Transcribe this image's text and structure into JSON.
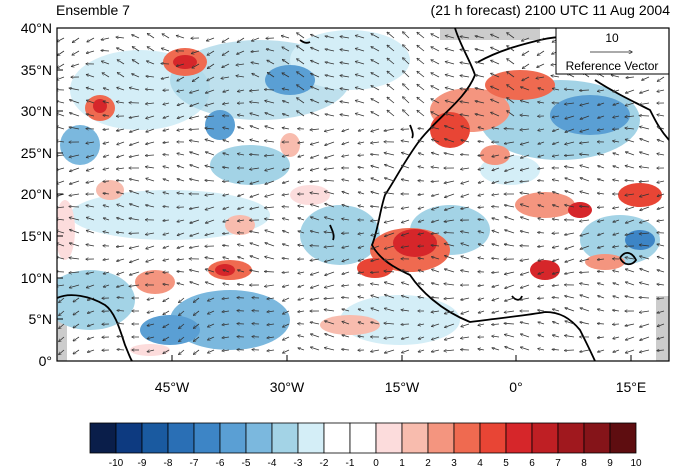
{
  "header": {
    "left_title": "Ensemble 7",
    "right_title": "(21 h forecast) 2100 UTC 11 Aug 2004"
  },
  "map": {
    "y_ticks": [
      "40°N",
      "35°N",
      "30°N",
      "25°N",
      "20°N",
      "15°N",
      "10°N",
      "5°N",
      "0°"
    ],
    "x_ticks": [
      "45°W",
      "30°W",
      "15°W",
      "0°",
      "15°E"
    ],
    "lat_range": [
      0,
      40
    ],
    "lon_range": [
      -60,
      20
    ]
  },
  "reference_vector": {
    "magnitude": "10",
    "label": "Reference Vector"
  },
  "colorbar": {
    "labels": [
      "-10",
      "-9",
      "-8",
      "-7",
      "-6",
      "-5",
      "-4",
      "-3",
      "-2",
      "-1",
      "0",
      "1",
      "2",
      "3",
      "4",
      "5",
      "6",
      "7",
      "8",
      "9",
      "10"
    ],
    "colors": [
      "#0a1e4a",
      "#0d3a80",
      "#1a5aa0",
      "#2a6fb5",
      "#3d85c6",
      "#5a9fd4",
      "#7bb8de",
      "#a3d3e6",
      "#d4eef7",
      "#ffffff",
      "#ffffff",
      "#fcdcdc",
      "#f8bcae",
      "#f4957f",
      "#ef6a50",
      "#e84535",
      "#d6262a",
      "#bf1f24",
      "#a0181e",
      "#851419",
      "#5e0d10"
    ]
  },
  "colors": {
    "coast": "#000000",
    "vector": "#333333",
    "land_gray": "#cccccc"
  }
}
